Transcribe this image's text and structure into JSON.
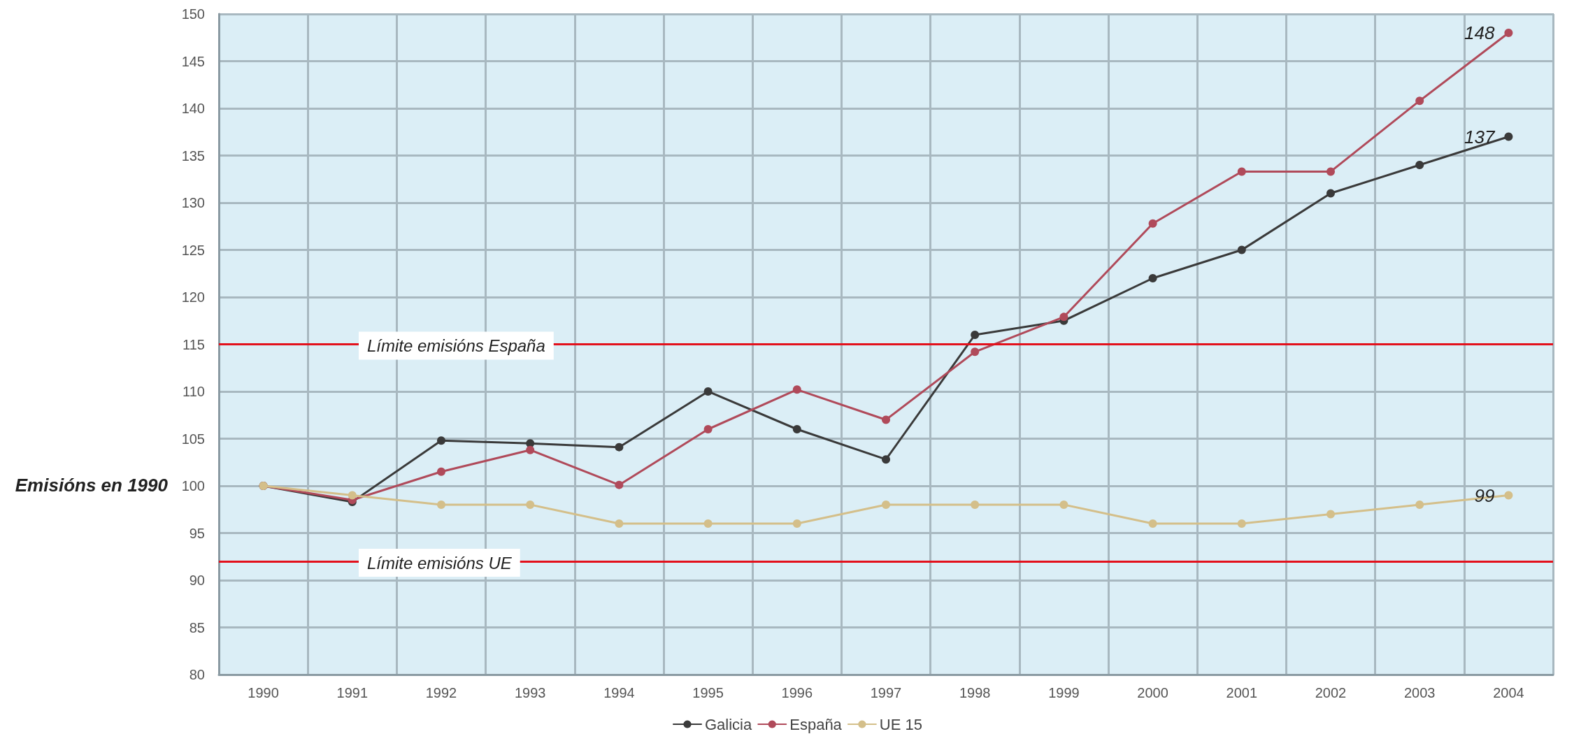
{
  "chart_data": {
    "type": "line",
    "categories": [
      "1990",
      "1991",
      "1992",
      "1993",
      "1994",
      "1995",
      "1996",
      "1997",
      "1998",
      "1999",
      "2000",
      "2001",
      "2002",
      "2003",
      "2004"
    ],
    "series": [
      {
        "name": "Galicia",
        "color": "#3a3a3a",
        "values": [
          100,
          98.3,
          104.8,
          104.5,
          104.1,
          110,
          106,
          102.8,
          116,
          117.5,
          122,
          125,
          131,
          134,
          137
        ],
        "value_labels": [
          null,
          null,
          null,
          null,
          null,
          null,
          null,
          null,
          null,
          null,
          null,
          null,
          null,
          null,
          "137"
        ]
      },
      {
        "name": "España",
        "color": "#b04a5a",
        "values": [
          100,
          98.5,
          101.5,
          103.8,
          100.1,
          106,
          110.2,
          107,
          114.2,
          117.9,
          127.8,
          133.3,
          133.3,
          140.8,
          148
        ],
        "value_labels": [
          null,
          null,
          null,
          null,
          null,
          null,
          null,
          null,
          null,
          null,
          null,
          null,
          null,
          null,
          "148"
        ]
      },
      {
        "name": "UE 15",
        "color": "#d4bf8a",
        "values": [
          100,
          99,
          98,
          98,
          96,
          96,
          96,
          98,
          98,
          98,
          96,
          96,
          97,
          98,
          99
        ],
        "value_labels": [
          null,
          null,
          null,
          null,
          null,
          null,
          null,
          null,
          null,
          null,
          null,
          null,
          null,
          null,
          "99"
        ]
      }
    ],
    "ylim": [
      80,
      150
    ],
    "yticks": [
      80,
      85,
      90,
      95,
      100,
      105,
      110,
      115,
      120,
      125,
      130,
      135,
      140,
      145,
      150
    ],
    "grid": true,
    "legend": "bottom",
    "marker": "circle",
    "line_style": "solid",
    "ref_lines": [
      {
        "axis": "y",
        "value": 115,
        "label": "Límite emisións España",
        "color": "#e3101b"
      },
      {
        "axis": "y",
        "value": 92,
        "label": "Límite emisións UE",
        "color": "#e3101b"
      }
    ],
    "annotations": [
      "Emisións en 1990"
    ]
  }
}
